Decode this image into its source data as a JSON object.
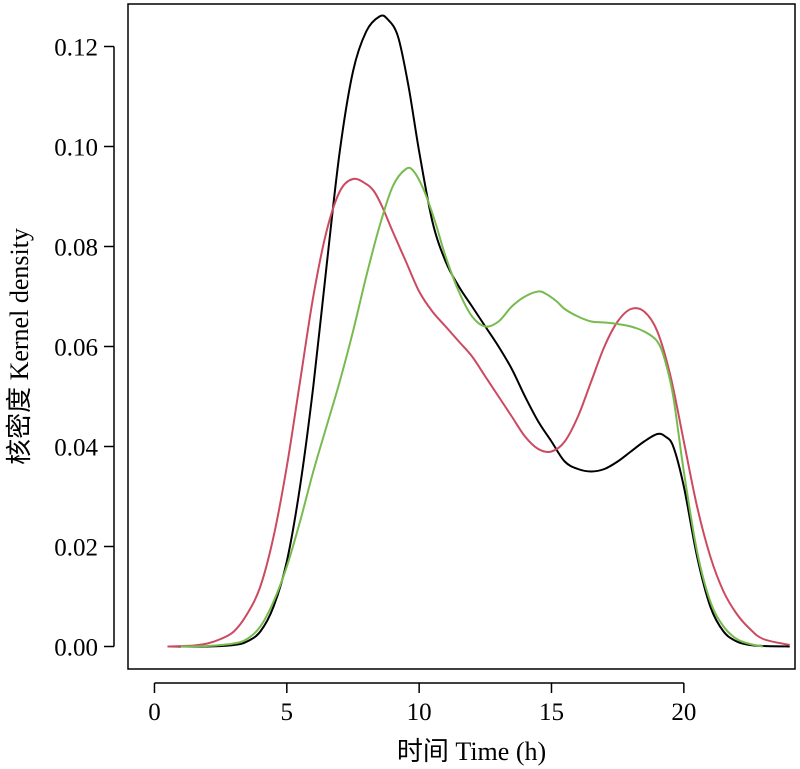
{
  "chart_data": {
    "type": "line",
    "xlabel": "时间 Time (h)",
    "ylabel": "核密度 Kernel density",
    "xlim": [
      -1,
      24.2
    ],
    "ylim": [
      -0.0045,
      0.1285
    ],
    "x_ticks": [
      0,
      5,
      10,
      15,
      20
    ],
    "y_ticks": [
      0.0,
      0.02,
      0.04,
      0.06,
      0.08,
      0.1,
      0.12
    ],
    "x_tick_labels": [
      "0",
      "5",
      "10",
      "15",
      "20"
    ],
    "y_tick_labels": [
      "0.00",
      "0.02",
      "0.04",
      "0.06",
      "0.08",
      "0.10",
      "0.12"
    ],
    "grid": false,
    "legend": "none",
    "series": [
      {
        "color": "#000000",
        "x": [
          0.5,
          2,
          3,
          3.5,
          4,
          4.5,
          5,
          5.5,
          6,
          6.5,
          7,
          7.5,
          8,
          8.5,
          8.8,
          9.2,
          9.6,
          10,
          10.5,
          11,
          11.5,
          12,
          12.5,
          13,
          13.5,
          14,
          14.5,
          15,
          15.5,
          16,
          16.5,
          17,
          17.5,
          18,
          18.5,
          19,
          19.3,
          19.6,
          20,
          20.5,
          21,
          21.5,
          22,
          22.5,
          23,
          24
        ],
        "y": [
          0.0,
          0.0,
          0.0003,
          0.001,
          0.003,
          0.008,
          0.017,
          0.032,
          0.052,
          0.076,
          0.099,
          0.115,
          0.123,
          0.126,
          0.1255,
          0.122,
          0.112,
          0.099,
          0.085,
          0.077,
          0.072,
          0.068,
          0.064,
          0.06,
          0.0555,
          0.05,
          0.045,
          0.041,
          0.037,
          0.0355,
          0.035,
          0.0355,
          0.037,
          0.039,
          0.041,
          0.0425,
          0.042,
          0.04,
          0.032,
          0.018,
          0.008,
          0.003,
          0.001,
          0.0003,
          0.0001,
          0.0
        ]
      },
      {
        "color": "#cc4a60",
        "x": [
          0.5,
          1.5,
          2,
          2.5,
          3,
          3.5,
          4,
          4.5,
          5,
          5.5,
          6,
          6.5,
          7,
          7.5,
          8,
          8.3,
          8.6,
          9,
          9.5,
          10,
          10.5,
          11,
          11.5,
          12,
          12.5,
          13,
          13.5,
          14,
          14.5,
          15,
          15.5,
          16,
          16.5,
          17,
          17.5,
          18,
          18.5,
          19,
          19.5,
          20,
          20.5,
          21,
          21.5,
          22,
          22.5,
          23,
          24
        ],
        "y": [
          0.0,
          0.0002,
          0.0006,
          0.0015,
          0.003,
          0.0065,
          0.012,
          0.022,
          0.036,
          0.053,
          0.07,
          0.083,
          0.091,
          0.0935,
          0.0925,
          0.091,
          0.088,
          0.083,
          0.077,
          0.071,
          0.067,
          0.064,
          0.061,
          0.058,
          0.054,
          0.05,
          0.046,
          0.042,
          0.0395,
          0.039,
          0.041,
          0.046,
          0.053,
          0.06,
          0.065,
          0.0675,
          0.067,
          0.063,
          0.054,
          0.041,
          0.028,
          0.018,
          0.011,
          0.0065,
          0.0035,
          0.0015,
          0.0003
        ]
      },
      {
        "color": "#77bb4f",
        "x": [
          1,
          2,
          3,
          3.5,
          4,
          4.5,
          5,
          5.5,
          6,
          6.5,
          7,
          7.5,
          8,
          8.5,
          9,
          9.5,
          9.8,
          10.2,
          10.6,
          11,
          11.5,
          12,
          12.5,
          13,
          13.5,
          14,
          14.5,
          14.8,
          15.2,
          15.5,
          16,
          16.5,
          17,
          17.5,
          18,
          18.5,
          19,
          19.3,
          19.6,
          20,
          20.5,
          21,
          21.5,
          22,
          22.5,
          23
        ],
        "y": [
          0.0,
          0.0001,
          0.0006,
          0.0015,
          0.004,
          0.009,
          0.016,
          0.025,
          0.035,
          0.044,
          0.053,
          0.063,
          0.074,
          0.084,
          0.092,
          0.0955,
          0.095,
          0.091,
          0.085,
          0.078,
          0.071,
          0.066,
          0.064,
          0.065,
          0.068,
          0.07,
          0.071,
          0.0705,
          0.069,
          0.0675,
          0.066,
          0.065,
          0.0648,
          0.0645,
          0.064,
          0.063,
          0.061,
          0.057,
          0.05,
          0.035,
          0.019,
          0.009,
          0.004,
          0.0015,
          0.0005,
          0.0
        ]
      }
    ]
  }
}
